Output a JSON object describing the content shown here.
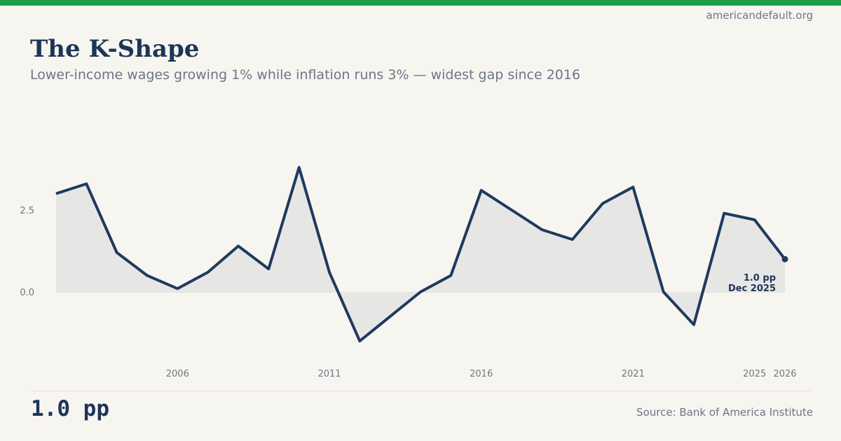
{
  "site": "americandefault.org",
  "header": {
    "title": "The K-Shape",
    "subtitle": "Lower-income wages growing 1% while inflation runs 3% — widest gap since 2016"
  },
  "footer": {
    "value": "1.0 pp",
    "source": "Source: Bank of America Institute"
  },
  "colors": {
    "accent_green": "#1f9e4a",
    "navy": "#1d3557",
    "line_navy": "#1f3a5f",
    "area_fill": "#e6e7e5",
    "background": "#f7f5f0",
    "gray_text": "#6d7585",
    "zero_line": "#e2e2dd"
  },
  "chart_data": {
    "type": "area",
    "title": "The K-Shape",
    "xlabel": "",
    "ylabel": "",
    "unit": "pp",
    "grid": false,
    "legend": "none",
    "x": [
      2002,
      2003,
      2004,
      2005,
      2006,
      2007,
      2008,
      2009,
      2010,
      2011,
      2012,
      2013,
      2014,
      2015,
      2016,
      2017,
      2018,
      2019,
      2020,
      2021,
      2022,
      2023,
      2024,
      2025,
      2026
    ],
    "values": [
      3.0,
      3.3,
      1.2,
      0.5,
      0.1,
      0.6,
      1.4,
      0.7,
      3.8,
      0.6,
      -1.5,
      -0.75,
      0.0,
      0.5,
      3.1,
      2.5,
      1.9,
      1.6,
      2.7,
      3.2,
      0.0,
      -1.0,
      2.4,
      2.2,
      1.0
    ],
    "x_ticks": [
      {
        "x": 2006,
        "label": "2006"
      },
      {
        "x": 2011,
        "label": "2011"
      },
      {
        "x": 2016,
        "label": "2016"
      },
      {
        "x": 2021,
        "label": "2021"
      },
      {
        "x": 2025,
        "label": "2025"
      },
      {
        "x": 2026,
        "label": "2026"
      }
    ],
    "y_ticks": [
      {
        "value": 2.5,
        "label": "2.5"
      },
      {
        "value": 0.0,
        "label": "0.0"
      }
    ],
    "xlim": [
      2002,
      2026
    ],
    "ylim": [
      -1.9,
      4.2
    ],
    "baseline": 0,
    "end_point": {
      "x": 2026,
      "value": 1.0
    },
    "annotation": {
      "line1": "1.0 pp",
      "line2": "Dec 2025"
    }
  }
}
